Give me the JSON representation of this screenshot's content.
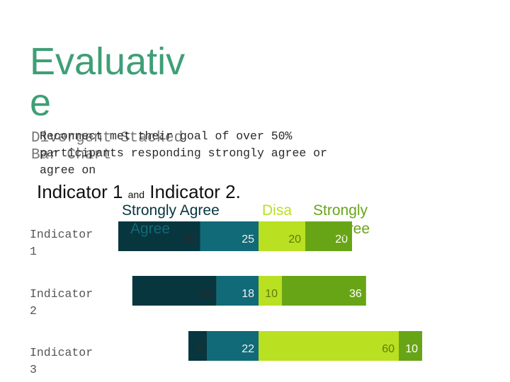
{
  "slide": {
    "title": "Evaluativ\ne",
    "subtitle_line1": "Divergent Stacked",
    "subtitle_line2": "Bar Chart",
    "description": "Reconnect met their goal of over 50%\nparticipants responding strongly agree or\nagree on",
    "indicator_part1": "Indicator 1 ",
    "indicator_and": "and",
    "indicator_part2": " Indicator 2.",
    "title_color": "#3e9f76"
  },
  "chart_data": {
    "type": "bar",
    "orientation": "horizontal",
    "stacked": true,
    "categories": [
      "Indicator\n1",
      "Indicator\n2",
      "Indicator\n3"
    ],
    "series": [
      {
        "name": "Strongly Agree",
        "values": [
          35,
          36,
          8
        ],
        "color": "#07363f"
      },
      {
        "name": "Agree",
        "values": [
          25,
          18,
          22
        ],
        "color": "#116a78"
      },
      {
        "name": "Disagree",
        "values": [
          20,
          10,
          60
        ],
        "color": "#b9e021"
      },
      {
        "name": "Strongly Disagree",
        "values": [
          20,
          36,
          10
        ],
        "color": "#68a516"
      }
    ],
    "legend_position": "top",
    "legend_label_colors": [
      "#07363f",
      "#116a78",
      "#b9e021",
      "#68a516"
    ]
  }
}
